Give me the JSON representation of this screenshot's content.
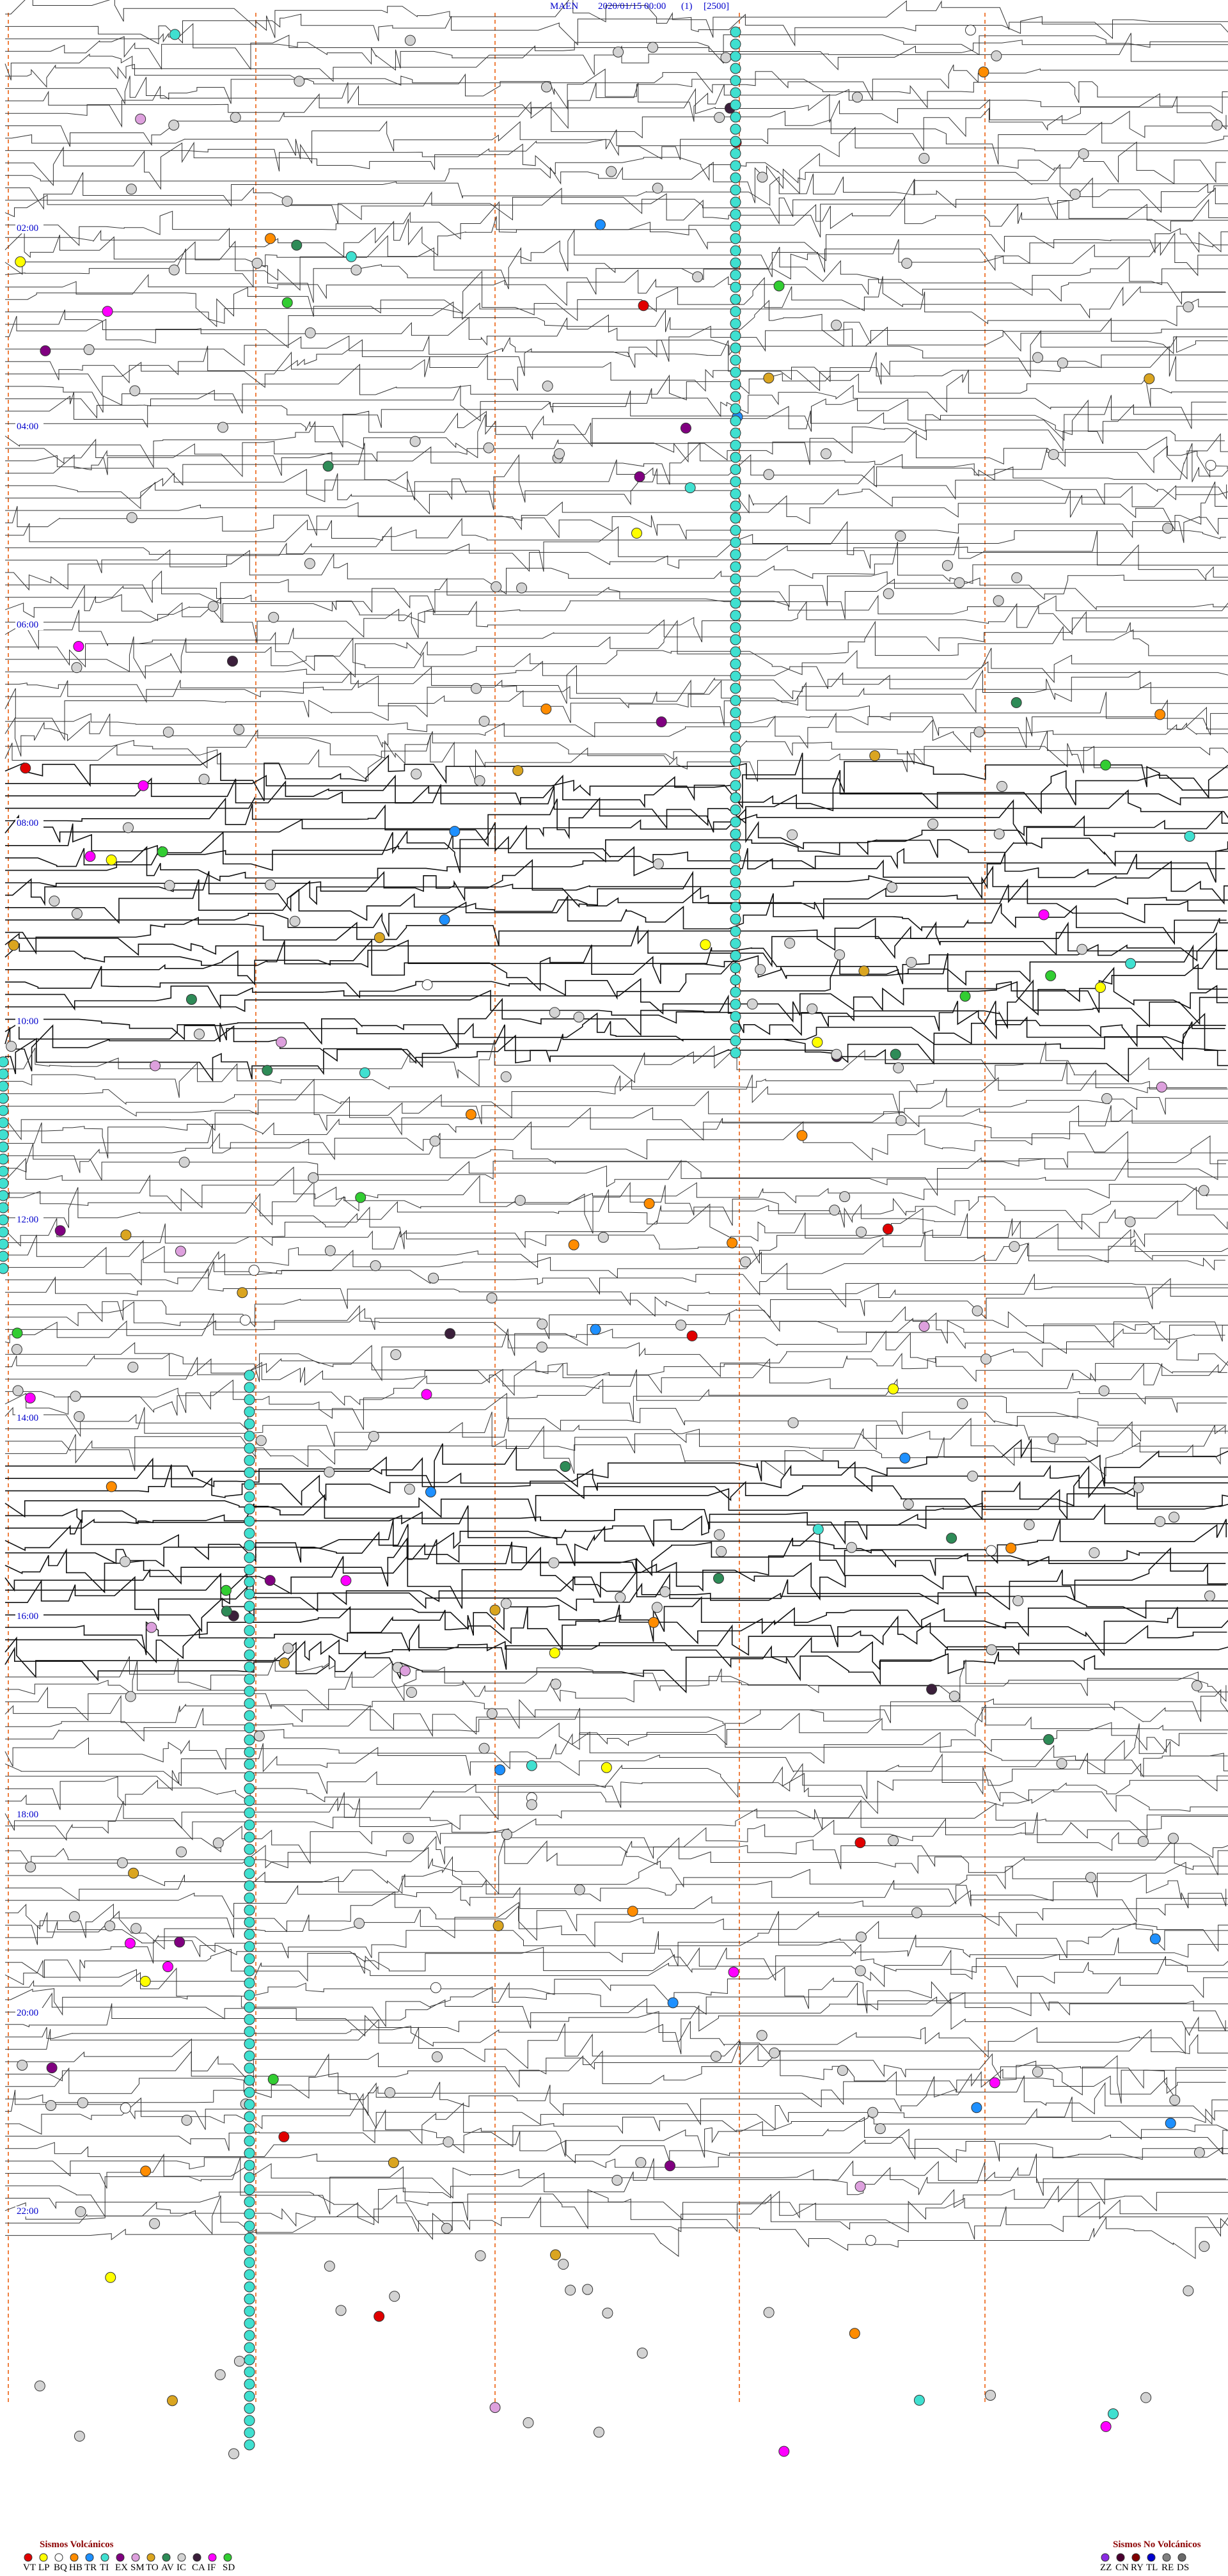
{
  "header": {
    "station": "MAEN",
    "datetime": "2020/01/15 00:00",
    "channel": "(1)",
    "scale": "[2500]"
  },
  "hour_labels": [
    "02:00",
    "04:00",
    "06:00",
    "08:00",
    "10:00",
    "12:00",
    "14:00",
    "16:00",
    "18:00",
    "20:00",
    "22:00"
  ],
  "legend_volcanic": {
    "title": "Sismos Volcánicos",
    "items": [
      {
        "code": "VT",
        "color": "#e00000"
      },
      {
        "code": "LP",
        "color": "#ffff00"
      },
      {
        "code": "BQ",
        "color": "#ffffff"
      },
      {
        "code": "HB",
        "color": "#ff8c00"
      },
      {
        "code": "TR",
        "color": "#1e90ff"
      },
      {
        "code": "TI",
        "color": "#40e0d0"
      },
      {
        "code": "EX",
        "color": "#800080"
      },
      {
        "code": "SM",
        "color": "#dda0dd"
      },
      {
        "code": "TO",
        "color": "#daa520"
      },
      {
        "code": "AV",
        "color": "#2e8b57"
      },
      {
        "code": "IC",
        "color": "#d3d3d3"
      },
      {
        "code": "CA",
        "color": "#3b1f3b"
      },
      {
        "code": "IF",
        "color": "#ff00ff"
      },
      {
        "code": "SD",
        "color": "#32cd32"
      }
    ]
  },
  "legend_nonvolcanic": {
    "title": "Sismos No Volcánicos",
    "items": [
      {
        "code": "ZZ",
        "color": "#8a2be2"
      },
      {
        "code": "CN",
        "color": "#4b0030"
      },
      {
        "code": "RY",
        "color": "#800000"
      },
      {
        "code": "TL",
        "color": "#0000cd"
      },
      {
        "code": "RE",
        "color": "#808080"
      },
      {
        "code": "DS",
        "color": "#696969"
      }
    ]
  }
}
